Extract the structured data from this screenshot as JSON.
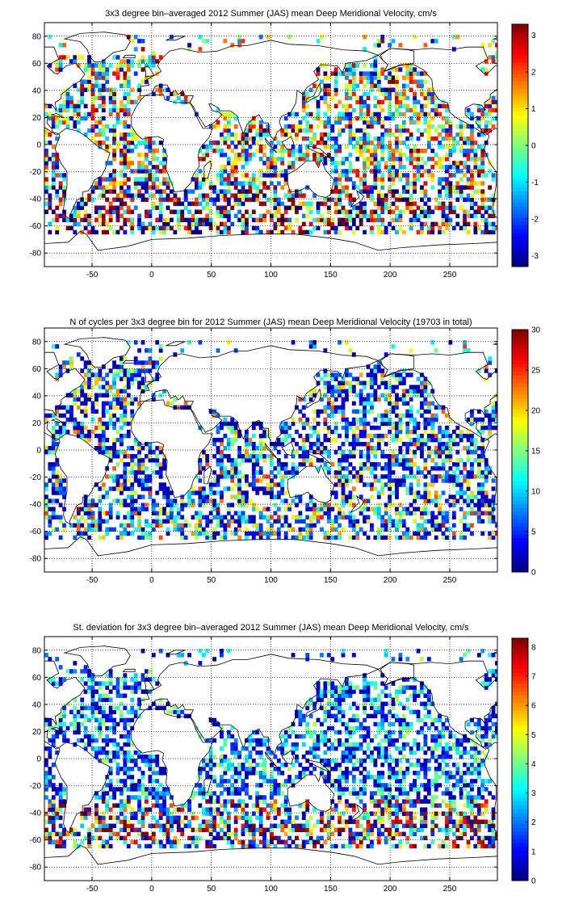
{
  "chart_data": [
    {
      "type": "heatmap",
      "title": "3x3 degree bin–averaged 2012 Summer (JAS) mean Deep Meridional Velocity, cm/s",
      "xlabel": "",
      "ylabel": "",
      "xlim": [
        -90,
        290
      ],
      "ylim": [
        -90,
        90
      ],
      "x_ticks": [
        "-50",
        "0",
        "50",
        "100",
        "150",
        "200",
        "250"
      ],
      "y_ticks": [
        "80",
        "60",
        "40",
        "20",
        "0",
        "-20",
        "-40",
        "-60",
        "-80"
      ],
      "grid": true,
      "colormap": "jet",
      "clim": [
        -3.3,
        3.3
      ],
      "colorbar_ticks": [
        "3",
        "2",
        "1",
        "0",
        "-1",
        "-2",
        "-3"
      ],
      "bin_size_deg": 3,
      "field": "mean deep meridional velocity"
    },
    {
      "type": "heatmap",
      "title": "N of cycles per 3x3 degree bin for 2012 Summer (JAS) mean Deep Meridional Velocity (19703 in total)",
      "xlabel": "",
      "ylabel": "",
      "xlim": [
        -90,
        290
      ],
      "ylim": [
        -90,
        90
      ],
      "x_ticks": [
        "-50",
        "0",
        "50",
        "100",
        "150",
        "200",
        "250"
      ],
      "y_ticks": [
        "80",
        "60",
        "40",
        "20",
        "0",
        "-20",
        "-40",
        "-60",
        "-80"
      ],
      "grid": true,
      "colormap": "jet",
      "clim": [
        0,
        30
      ],
      "colorbar_ticks": [
        "30",
        "25",
        "20",
        "15",
        "10",
        "5",
        "0"
      ],
      "bin_size_deg": 3,
      "field": "number of cycles"
    },
    {
      "type": "heatmap",
      "title": "St. deviation for 3x3 degree bin–averaged 2012 Summer (JAS) mean Deep Meridional Velocity, cm/s",
      "xlabel": "",
      "ylabel": "",
      "xlim": [
        -90,
        290
      ],
      "ylim": [
        -90,
        90
      ],
      "x_ticks": [
        "-50",
        "0",
        "50",
        "100",
        "150",
        "200",
        "250"
      ],
      "y_ticks": [
        "80",
        "60",
        "40",
        "20",
        "0",
        "-20",
        "-40",
        "-60",
        "-80"
      ],
      "grid": true,
      "colormap": "jet",
      "clim": [
        0,
        8.3
      ],
      "colorbar_ticks": [
        "8",
        "7",
        "6",
        "5",
        "4",
        "3",
        "2",
        "1",
        "0"
      ],
      "bin_size_deg": 3,
      "field": "standard deviation"
    }
  ]
}
